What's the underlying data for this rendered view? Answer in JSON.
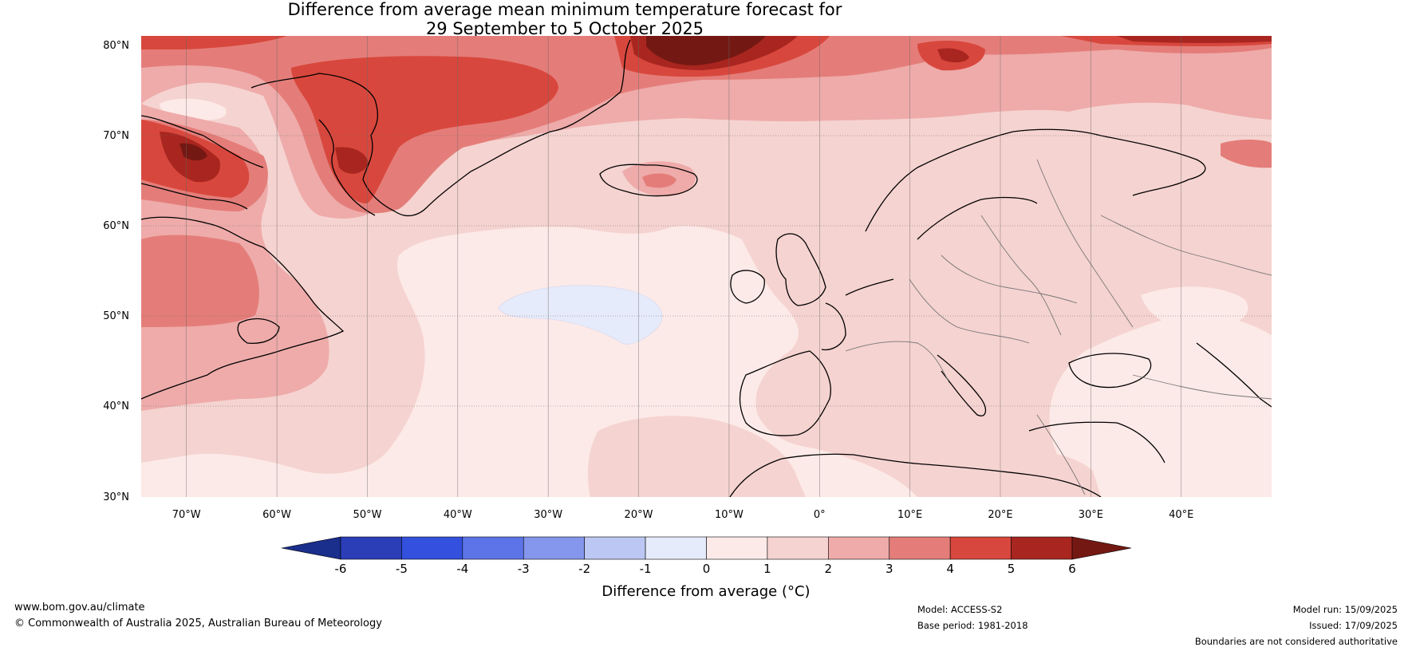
{
  "title": {
    "line1": "Difference from average mean minimum temperature forecast for",
    "line2": "29 September to 5 October 2025"
  },
  "map": {
    "lat_labels": [
      "80°N",
      "70°N",
      "60°N",
      "50°N",
      "40°N",
      "30°N"
    ],
    "lon_labels": [
      "70°W",
      "60°W",
      "50°W",
      "40°W",
      "30°W",
      "20°W",
      "10°W",
      "0°",
      "10°E",
      "20°E",
      "30°E",
      "40°E"
    ],
    "extent": {
      "lon": [
        -75,
        50
      ],
      "lat": [
        30,
        81
      ]
    }
  },
  "colorbar": {
    "ticks": [
      "-6",
      "-5",
      "-4",
      "-3",
      "-2",
      "-1",
      "0",
      "1",
      "2",
      "3",
      "4",
      "5",
      "6"
    ],
    "colors": [
      "#1a2e8c",
      "#2b3eb8",
      "#3351de",
      "#5d74e8",
      "#8597ec",
      "#bcc7f3",
      "#e6ebfb",
      "#fceae8",
      "#f5d3d0",
      "#eeabaa",
      "#e47d79",
      "#d8473d",
      "#a8261f",
      "#741813"
    ],
    "label": "Difference from average (°C)"
  },
  "footer": {
    "url": "www.bom.gov.au/climate",
    "copyright": "© Commonwealth of Australia 2025, Australian Bureau of Meteorology",
    "model": "Model: ACCESS-S2",
    "base_period": "Base period: 1981-2018",
    "model_run": "Model run: 15/09/2025",
    "issued": "Issued: 17/09/2025",
    "disclaimer": "Boundaries are not considered authoritative"
  }
}
